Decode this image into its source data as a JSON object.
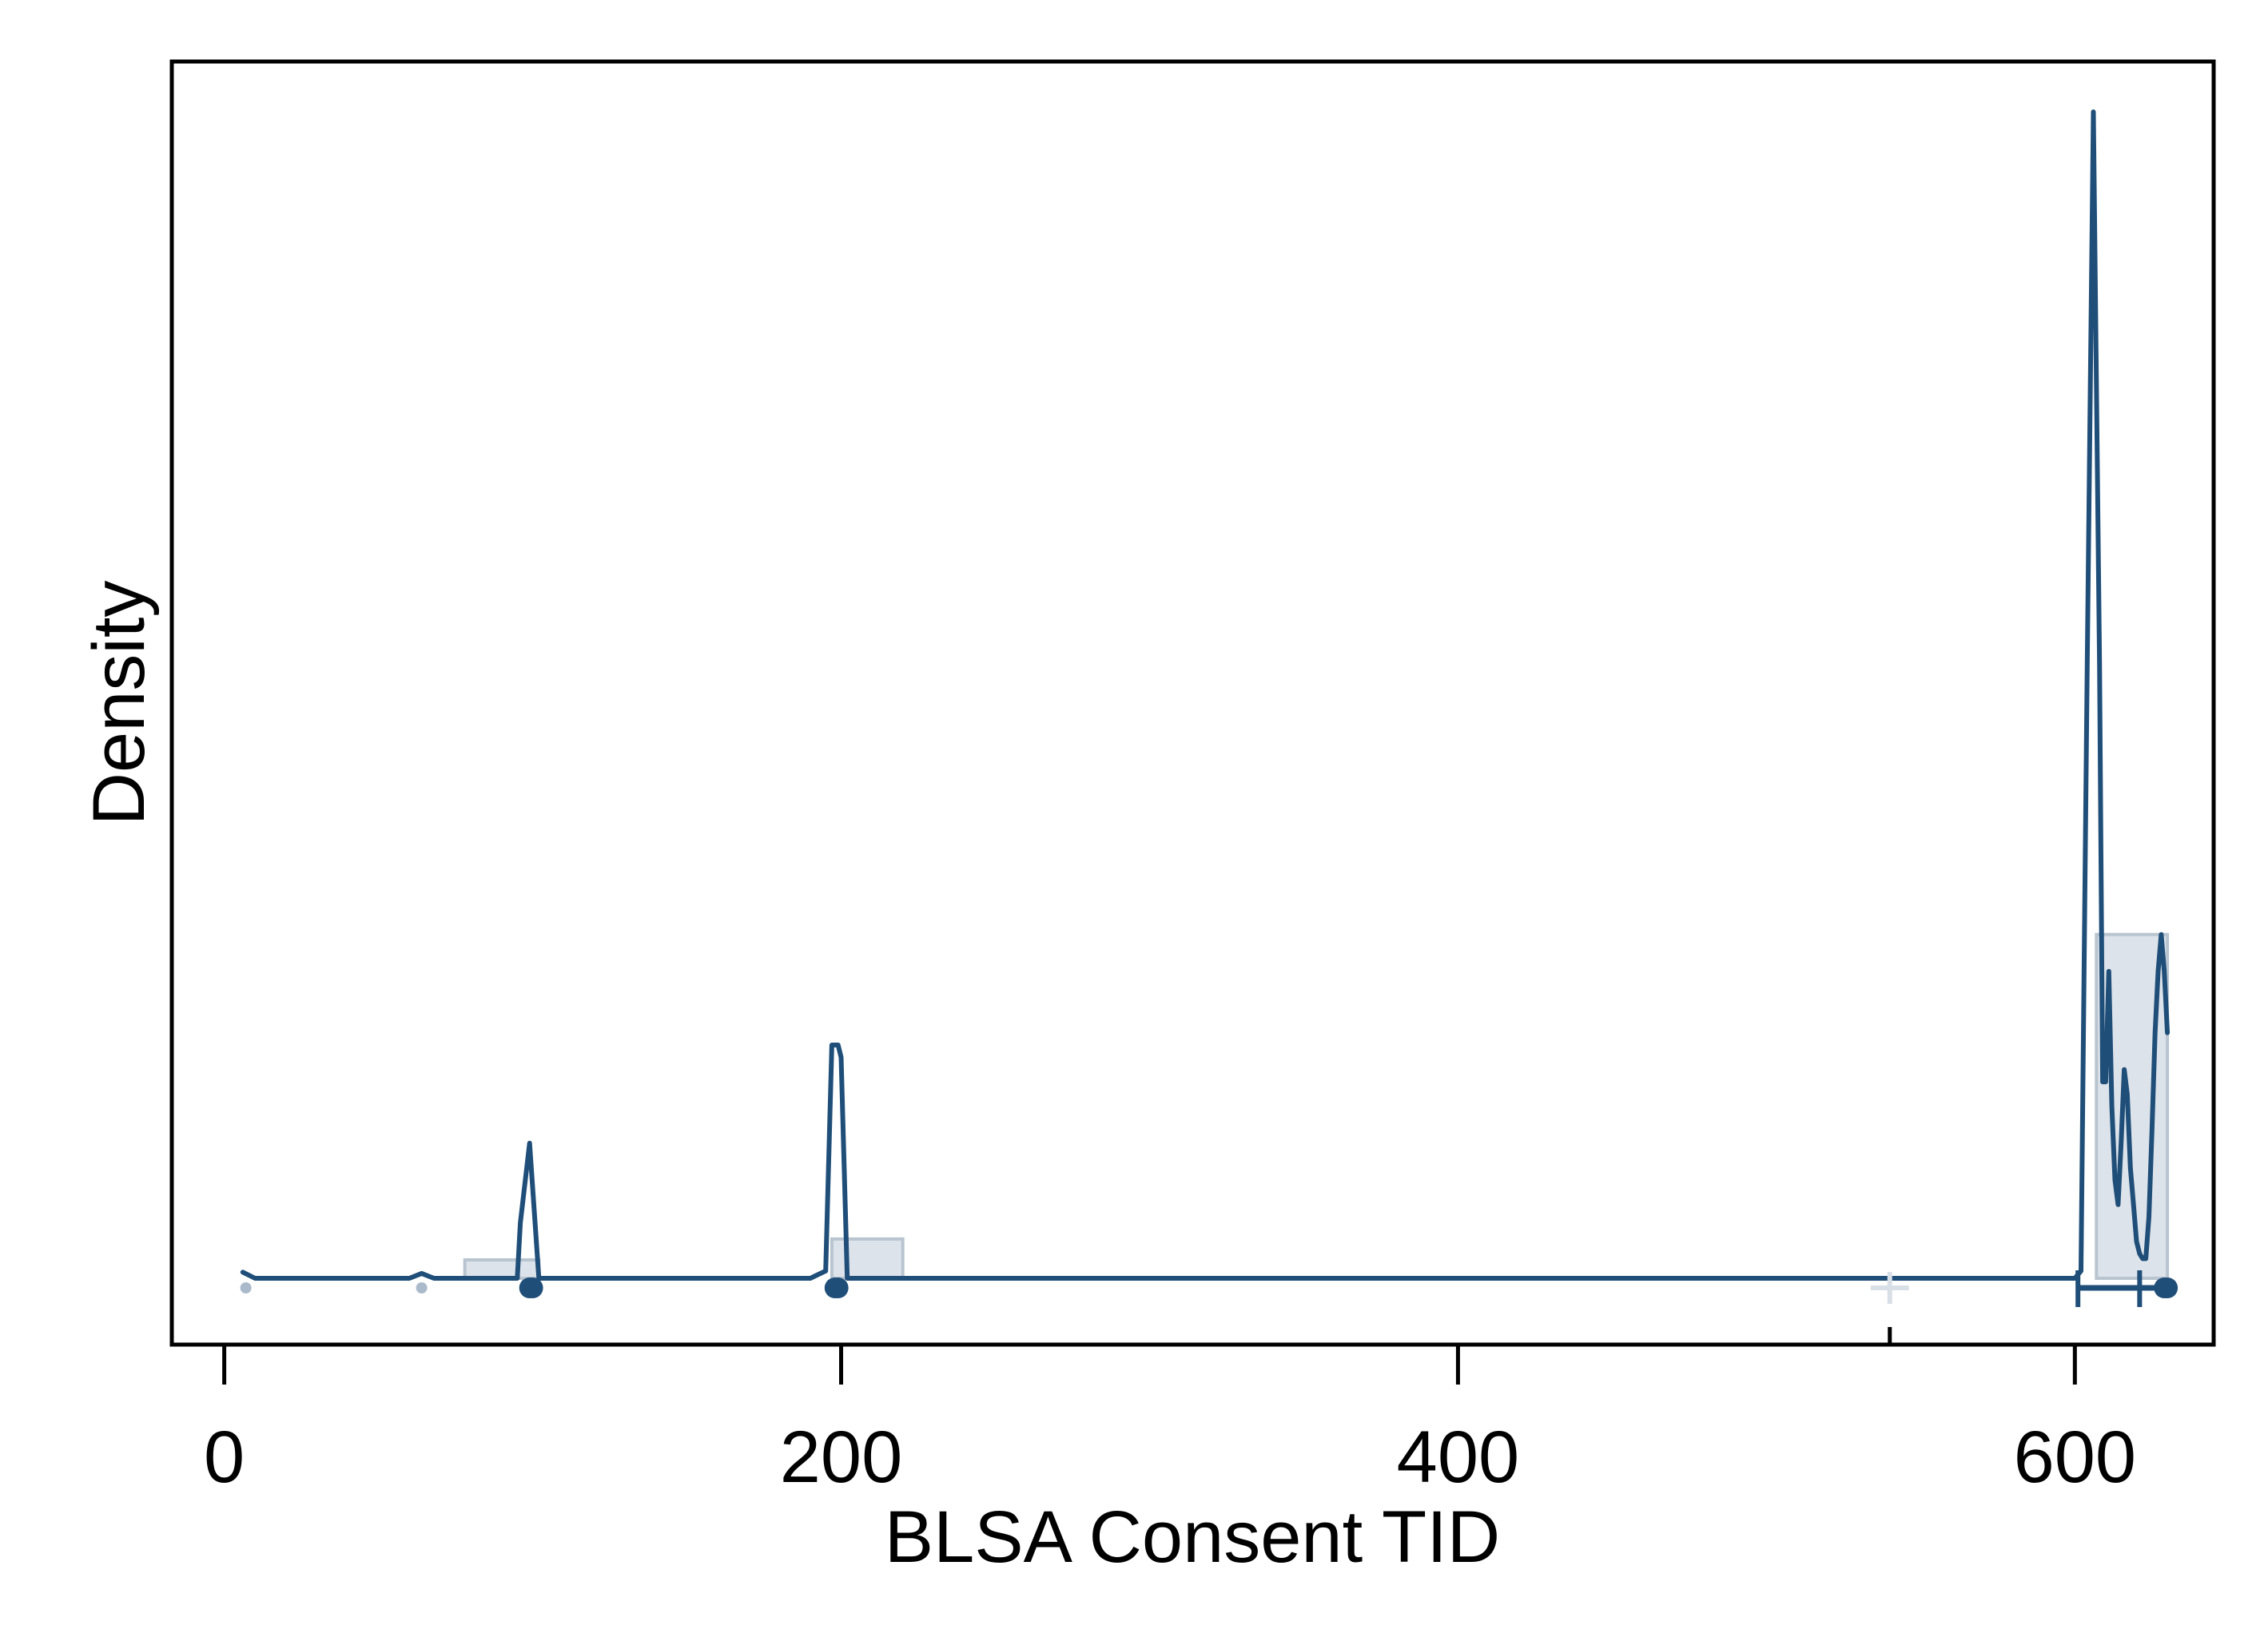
{
  "chart_data": {
    "type": "area",
    "title": "",
    "xlabel": "BLSA Consent TID",
    "ylabel": "Density",
    "xlim": [
      -17,
      645
    ],
    "ylim": [
      -0.03,
      1.0
    ],
    "xticks": [
      {
        "value": 0,
        "label": "0"
      },
      {
        "value": 200,
        "label": "200"
      },
      {
        "value": 400,
        "label": "400"
      },
      {
        "value": 600,
        "label": "600"
      }
    ],
    "grid": false,
    "legend": "none",
    "colors": {
      "line": "#1f4e79",
      "histogram_fill": "#dde3ea",
      "histogram_edge": "#b8c4cf",
      "faint_point": "#aabacb",
      "marker_light": "#d8dfe6",
      "frame": "#000000"
    },
    "histogram_bins": [
      {
        "x0": 78,
        "x1": 102,
        "density": 0.015
      },
      {
        "x0": 197,
        "x1": 220,
        "density": 0.032
      },
      {
        "x0": 607,
        "x1": 630,
        "density": 0.28
      }
    ],
    "density_curve": {
      "x": [
        6,
        10,
        30,
        50,
        60,
        64,
        68,
        72,
        80,
        90,
        95,
        96,
        99,
        102,
        105,
        120,
        150,
        180,
        190,
        195,
        197,
        199,
        200,
        202,
        210,
        300,
        400,
        500,
        540,
        580,
        600,
        602,
        604,
        606,
        608,
        609,
        610,
        611,
        612,
        613,
        614,
        615,
        616,
        617,
        618,
        619,
        620,
        621,
        622,
        623,
        624,
        625,
        626,
        627,
        628,
        629,
        630
      ],
      "y": [
        0.005,
        0.0,
        0.0,
        0.0,
        0.0,
        0.004,
        0.0,
        0.0,
        0.0,
        0.0,
        0.0,
        0.045,
        0.11,
        0.0,
        0.0,
        0.0,
        0.0,
        0.0,
        0.0,
        0.006,
        0.19,
        0.19,
        0.18,
        0.0,
        0.0,
        0.0,
        0.0,
        0.0,
        0.0,
        0.0,
        0.0,
        0.006,
        0.5,
        0.95,
        0.5,
        0.16,
        0.16,
        0.25,
        0.14,
        0.08,
        0.06,
        0.11,
        0.17,
        0.15,
        0.09,
        0.06,
        0.03,
        0.02,
        0.016,
        0.016,
        0.05,
        0.12,
        0.2,
        0.25,
        0.28,
        0.25,
        0.2
      ]
    },
    "rug_points": [
      {
        "x": 7,
        "style": "faint"
      },
      {
        "x": 64,
        "style": "faint"
      },
      {
        "x": 99,
        "style": "solid"
      },
      {
        "x": 100,
        "style": "solid"
      },
      {
        "x": 198,
        "style": "solid"
      },
      {
        "x": 199,
        "style": "solid"
      },
      {
        "x": 629,
        "style": "solid"
      },
      {
        "x": 630,
        "style": "solid"
      }
    ],
    "box_summary": {
      "marker_x": 540,
      "whisker_low": 601,
      "whisker_high": 621,
      "whisker_extended": 630
    }
  }
}
